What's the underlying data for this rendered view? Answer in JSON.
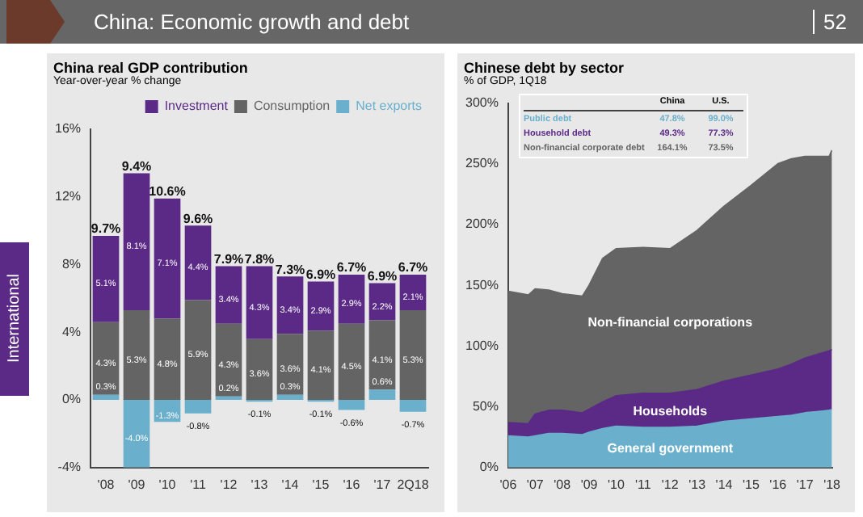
{
  "chart_data": [
    {
      "type": "other",
      "title": "China: Economic growth and debt",
      "annotations": [
        "52",
        "International"
      ]
    },
    {
      "type": "bar",
      "title": "China real GDP contribution",
      "subtitle": "Year-over-year % change",
      "stacked": true,
      "legend": "top right",
      "grid": false,
      "categories": [
        "'08",
        "'09",
        "'10",
        "'11",
        "'12",
        "'13",
        "'14",
        "'15",
        "'16",
        "'17",
        "2Q18"
      ],
      "series": [
        {
          "name": "Net exports",
          "color": "#6ab0cc",
          "values": [
            0.3,
            -4.0,
            -1.3,
            -0.8,
            0.2,
            -0.1,
            0.3,
            -0.1,
            -0.6,
            0.6,
            -0.7
          ],
          "value_labels": [
            "0.3%",
            "-4.0%",
            "-1.3%",
            "-0.8%",
            "0.2%",
            "-0.1%",
            "0.3%",
            "-0.1%",
            "-0.6%",
            "0.6%",
            "-0.7%"
          ]
        },
        {
          "name": "Consumption",
          "color": "#646464",
          "values": [
            4.3,
            5.3,
            4.8,
            5.9,
            4.3,
            3.6,
            3.6,
            4.1,
            4.5,
            4.1,
            5.3
          ],
          "value_labels": [
            "4.3%",
            "5.3%",
            "4.8%",
            "5.9%",
            "4.3%",
            "3.6%",
            "3.6%",
            "4.1%",
            "4.5%",
            "4.1%",
            "5.3%"
          ]
        },
        {
          "name": "Investment",
          "color": "#5b2a86",
          "values": [
            5.1,
            8.1,
            7.1,
            4.4,
            3.4,
            4.3,
            3.4,
            2.9,
            2.9,
            2.2,
            2.1
          ],
          "value_labels": [
            "5.1%",
            "8.1%",
            "7.1%",
            "4.4%",
            "3.4%",
            "4.3%",
            "3.4%",
            "2.9%",
            "2.9%",
            "2.2%",
            "2.1%"
          ]
        }
      ],
      "totals": [
        "9.7%",
        "9.4%",
        "10.6%",
        "9.6%",
        "7.9%",
        "7.8%",
        "7.3%",
        "6.9%",
        "6.7%",
        "6.9%",
        "6.7%"
      ],
      "ylim": [
        -4,
        16
      ],
      "yticks": [
        {
          "value": -4,
          "label": "-4%"
        },
        {
          "value": 0,
          "label": "0%"
        },
        {
          "value": 4,
          "label": "4%"
        },
        {
          "value": 8,
          "label": "8%"
        },
        {
          "value": 12,
          "label": "12%"
        },
        {
          "value": 16,
          "label": "16%"
        }
      ]
    },
    {
      "type": "area",
      "title": "Chinese debt by sector",
      "subtitle": "% of GDP, 1Q18",
      "stacked": true,
      "legend": false,
      "grid": false,
      "marker": "none",
      "x": [
        2006,
        2006.75,
        2007,
        2007.5,
        2008,
        2008.75,
        2009,
        2009.5,
        2010,
        2011,
        2012,
        2013,
        2014,
        2015,
        2016,
        2016.5,
        2017,
        2017.9,
        2018
      ],
      "series": [
        {
          "name": "General government",
          "color": "#6ab0cc",
          "values": [
            26,
            25,
            26,
            28,
            28,
            27,
            29,
            32,
            34,
            33,
            33,
            34,
            38,
            40,
            42,
            43,
            45,
            47,
            47.8
          ]
        },
        {
          "name": "Households",
          "color": "#5b2a86",
          "values": [
            11,
            11,
            18,
            19,
            19,
            18,
            19,
            22,
            25,
            28,
            28,
            30,
            33,
            36,
            39,
            42,
            45,
            49,
            49.3
          ]
        },
        {
          "name": "Non-financial corporations",
          "color": "#646464",
          "values": [
            108,
            106,
            103,
            99,
            96,
            96,
            102,
            118,
            121,
            120,
            119,
            131,
            144,
            156,
            169,
            169,
            166,
            160,
            164.1
          ]
        }
      ],
      "annotations": [
        "China",
        "U.S.",
        "Public debt",
        "47.8%",
        "99.0%",
        "Household debt",
        "49.3%",
        "77.3%",
        "Non-financial corporate debt",
        "164.1%",
        "73.5%"
      ],
      "xlim": [
        2006,
        2018
      ],
      "xticks": [
        {
          "value": 2006,
          "label": "'06"
        },
        {
          "value": 2007,
          "label": "'07"
        },
        {
          "value": 2008,
          "label": "'08"
        },
        {
          "value": 2009,
          "label": "'09"
        },
        {
          "value": 2010,
          "label": "'10"
        },
        {
          "value": 2011,
          "label": "'11"
        },
        {
          "value": 2012,
          "label": "'12"
        },
        {
          "value": 2013,
          "label": "'13"
        },
        {
          "value": 2014,
          "label": "'14"
        },
        {
          "value": 2015,
          "label": "'15"
        },
        {
          "value": 2016,
          "label": "'16"
        },
        {
          "value": 2017,
          "label": "'17"
        },
        {
          "value": 2018,
          "label": "'18"
        }
      ],
      "ylim": [
        0,
        300
      ],
      "yticks": [
        {
          "value": 0,
          "label": "0%"
        },
        {
          "value": 50,
          "label": "50%"
        },
        {
          "value": 100,
          "label": "100%"
        },
        {
          "value": 150,
          "label": "150%"
        },
        {
          "value": 200,
          "label": "200%"
        },
        {
          "value": 250,
          "label": "250%"
        },
        {
          "value": 300,
          "label": "300%"
        }
      ]
    }
  ]
}
